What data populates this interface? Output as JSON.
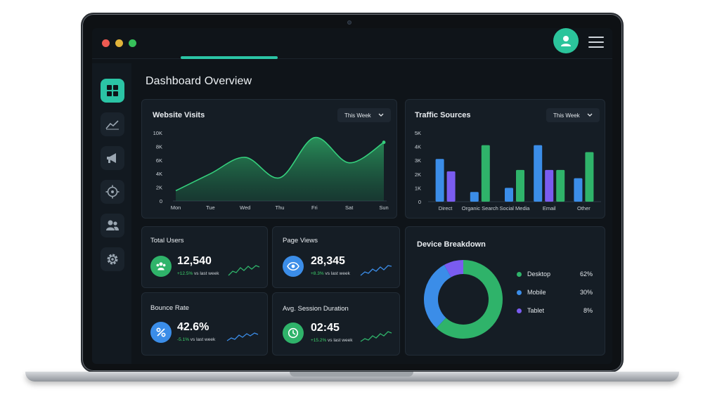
{
  "page": {
    "title": "Dashboard Overview"
  },
  "colors": {
    "accent": "#2bc4a5",
    "green": "#2fb36a",
    "blue": "#3b8de8",
    "purple": "#7a5cf0",
    "bg": "#0f1419"
  },
  "sidebar": {
    "items": [
      {
        "icon": "grid-icon",
        "active": true
      },
      {
        "icon": "trend-icon",
        "active": false
      },
      {
        "icon": "megaphone-icon",
        "active": false
      },
      {
        "icon": "target-icon",
        "active": false
      },
      {
        "icon": "users-icon",
        "active": false
      },
      {
        "icon": "gear-icon",
        "active": false
      }
    ]
  },
  "website_visits": {
    "title": "Website Visits",
    "range": "This Week",
    "y_ticks": [
      "10K",
      "8K",
      "6K",
      "4K",
      "2K",
      "0"
    ],
    "x_ticks": [
      "Mon",
      "Tue",
      "Wed",
      "Thu",
      "Fri",
      "Sat",
      "Sun"
    ]
  },
  "traffic_sources": {
    "title": "Traffic Sources",
    "range": "This Week",
    "y_ticks": [
      "5K",
      "4K",
      "3K",
      "2K",
      "1K",
      "0"
    ],
    "x_ticks": [
      "Direct",
      "Organic Search",
      "Social Media",
      "Email",
      "Other"
    ]
  },
  "stats": {
    "total_users": {
      "title": "Total Users",
      "value": "12,540",
      "delta": "+12.5%",
      "suffix": "vs last week"
    },
    "page_views": {
      "title": "Page Views",
      "value": "28,345",
      "delta": "+8.3%",
      "suffix": "vs last week"
    },
    "bounce_rate": {
      "title": "Bounce Rate",
      "value": "42.6%",
      "delta": "-5.1%",
      "suffix": "vs last week"
    },
    "session_duration": {
      "title": "Avg. Session Duration",
      "value": "02:45",
      "delta": "+15.2%",
      "suffix": "vs last week"
    }
  },
  "device_breakdown": {
    "title": "Device Breakdown",
    "items": [
      {
        "label": "Desktop",
        "pct": "62%",
        "value": 62,
        "color": "#2fb36a"
      },
      {
        "label": "Mobile",
        "pct": "30%",
        "value": 30,
        "color": "#3b8de8"
      },
      {
        "label": "Tablet",
        "pct": "8%",
        "value": 8,
        "color": "#7a5cf0"
      }
    ]
  },
  "chart_data": [
    {
      "type": "area",
      "title": "Website Visits",
      "x": [
        "Mon",
        "Tue",
        "Wed",
        "Thu",
        "Fri",
        "Sat",
        "Sun"
      ],
      "ylim": [
        0,
        10000
      ],
      "series": [
        {
          "values": [
            1500,
            4000,
            6400,
            3400,
            9300,
            5600,
            8600
          ]
        }
      ]
    },
    {
      "type": "bar",
      "title": "Traffic Sources",
      "categories": [
        "Direct",
        "Organic Search",
        "Social Media",
        "Email",
        "Other"
      ],
      "ylim": [
        0,
        5000
      ],
      "series": [
        {
          "color": "#3b8de8",
          "values": [
            3100,
            700,
            1000,
            4100,
            1700
          ]
        },
        {
          "color": "#7a5cf0",
          "values": [
            2200,
            null,
            null,
            2300,
            null
          ]
        },
        {
          "color": "#2fb36a",
          "values": [
            null,
            4100,
            2300,
            2300,
            3600
          ]
        }
      ]
    },
    {
      "type": "pie",
      "title": "Device Breakdown",
      "categories": [
        "Desktop",
        "Mobile",
        "Tablet"
      ],
      "values": [
        62,
        30,
        8
      ]
    }
  ]
}
